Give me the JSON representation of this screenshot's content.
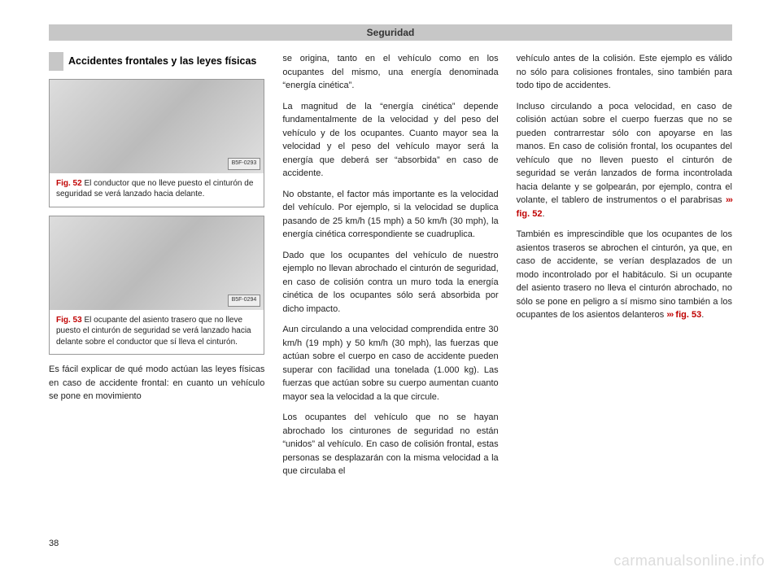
{
  "header": "Seguridad",
  "page_number": "38",
  "watermark": "carmanualsonline.info",
  "colors": {
    "accent_red": "#c00000",
    "band_gray": "#c7c7c7",
    "text": "#222222",
    "figure_bg_from": "#dddddd",
    "figure_bg_to": "#e0e0e0",
    "watermark": "#dcdcdc"
  },
  "section_title": "Accidentes frontales y las leyes físicas",
  "figures": {
    "fig52": {
      "label": "Fig. 52",
      "plate": "B5F-0293",
      "caption": "El conductor que no lleve puesto el cinturón de seguridad se verá lanzado hacia delante."
    },
    "fig53": {
      "label": "Fig. 53",
      "plate": "B5F-0294",
      "caption": "El ocupante del asiento trasero que no lleve puesto el cinturón de seguridad se verá lanzado hacia delante sobre el conductor que sí lleva el cinturón."
    }
  },
  "col1": {
    "p1": "Es fácil explicar de qué modo actúan las leyes físicas en caso de accidente frontal: en cuanto un vehículo se pone en movimiento"
  },
  "col2": {
    "p1": "se origina, tanto en el vehículo como en los ocupantes del mismo, una energía denominada “energía cinética”.",
    "p2": "La magnitud de la “energía cinética” depende fundamentalmente de la velocidad y del peso del vehículo y de los ocupantes. Cuanto mayor sea la velocidad y el peso del vehículo mayor será la energía que deberá ser “absorbida” en caso de accidente.",
    "p3": "No obstante, el factor más importante es la velocidad del vehículo. Por ejemplo, si la velocidad se duplica pasando de 25 km/h (15 mph) a 50 km/h (30 mph), la energía cinética correspondiente se cuadruplica.",
    "p4": "Dado que los ocupantes del vehículo de nuestro ejemplo no llevan abrochado el cinturón de seguridad, en caso de colisión contra un muro toda la energía cinética de los ocupantes sólo será absorbida por dicho impacto.",
    "p5": "Aun circulando a una velocidad comprendida entre 30 km/h (19 mph) y 50 km/h (30 mph), las fuerzas que actúan sobre el cuerpo en caso de accidente pueden superar con facilidad una tonelada (1.000 kg). Las fuerzas que actúan sobre su cuerpo aumentan cuanto mayor sea la velocidad a la que circule.",
    "p6": "Los ocupantes del vehículo que no se hayan abrochado los cinturones de seguridad no están “unidos” al vehículo. En caso de colisión frontal, estas personas se desplazarán con la misma velocidad a la que circulaba el"
  },
  "col3": {
    "p1a": "vehículo antes de la colisión. Este ejemplo es válido no sólo para colisiones frontales, sino también para todo tipo de accidentes.",
    "p2a": "Incluso circulando a poca velocidad, en caso de colisión actúan sobre el cuerpo fuerzas que no se pueden contrarrestar sólo con apoyarse en las manos. En caso de colisión frontal, los ocupantes del vehículo que no lleven puesto el cinturón de seguridad se verán lanzados de forma incontrolada hacia delante y se golpearán, por ejemplo, contra el volante, el tablero de instrumentos o el parabrisas ",
    "p2_ref_arrows": "›››",
    "p2_ref": "fig. 52",
    "p2b": ".",
    "p3a": "También es imprescindible que los ocupantes de los asientos traseros se abrochen el cinturón, ya que, en caso de accidente, se verían desplazados de un modo incontrolado por el habitáculo. Si un ocupante del asiento trasero no lleva el cinturón abrochado, no sólo se pone en peligro a sí mismo sino también a los ocupantes de los asientos delanteros ",
    "p3_ref_arrows": "›››",
    "p3_ref": "fig. 53",
    "p3b": "."
  }
}
